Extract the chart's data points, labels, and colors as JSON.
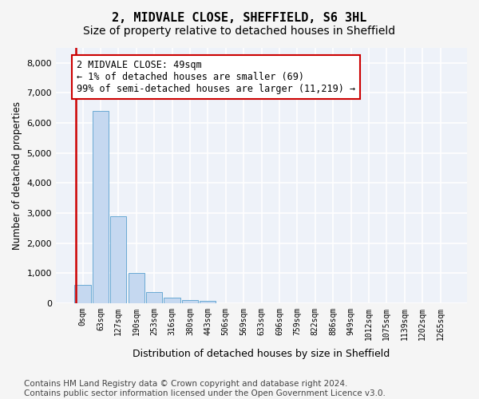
{
  "title": "2, MIDVALE CLOSE, SHEFFIELD, S6 3HL",
  "subtitle": "Size of property relative to detached houses in Sheffield",
  "xlabel": "Distribution of detached houses by size in Sheffield",
  "ylabel": "Number of detached properties",
  "bar_color": "#c5d8f0",
  "bar_edge_color": "#6aaad4",
  "marker_line_color": "#cc0000",
  "background_color": "#eef2f9",
  "grid_color": "#ffffff",
  "bin_labels": [
    "0sqm",
    "63sqm",
    "127sqm",
    "190sqm",
    "253sqm",
    "316sqm",
    "380sqm",
    "443sqm",
    "506sqm",
    "569sqm",
    "633sqm",
    "696sqm",
    "759sqm",
    "822sqm",
    "886sqm",
    "949sqm",
    "1012sqm",
    "1075sqm",
    "1139sqm",
    "1202sqm",
    "1265sqm"
  ],
  "bar_heights": [
    600,
    6400,
    2900,
    1000,
    380,
    180,
    100,
    80,
    0,
    0,
    0,
    0,
    0,
    0,
    0,
    0,
    0,
    0,
    0,
    0,
    0
  ],
  "ylim": [
    0,
    8500
  ],
  "yticks": [
    0,
    1000,
    2000,
    3000,
    4000,
    5000,
    6000,
    7000,
    8000
  ],
  "annotation_text_line1": "2 MIDVALE CLOSE: 49sqm",
  "annotation_text_line2": "← 1% of detached houses are smaller (69)",
  "annotation_text_line3": "99% of semi-detached houses are larger (11,219) →",
  "footer_text": "Contains HM Land Registry data © Crown copyright and database right 2024.\nContains public sector information licensed under the Open Government Licence v3.0.",
  "title_fontsize": 11,
  "subtitle_fontsize": 10,
  "annotation_fontsize": 8.5,
  "footer_fontsize": 7.5
}
